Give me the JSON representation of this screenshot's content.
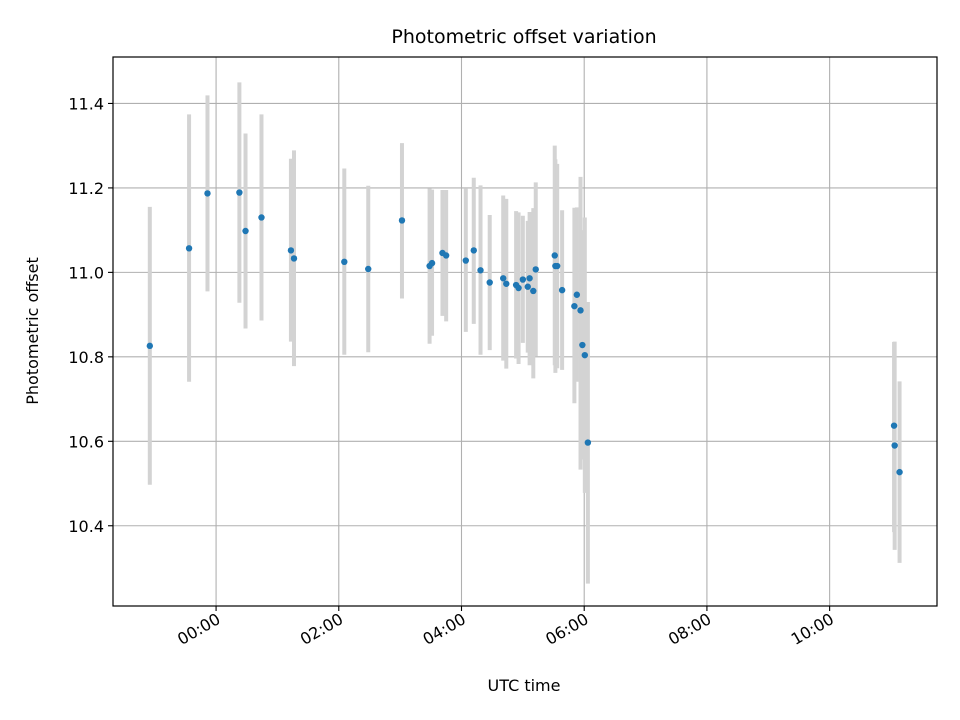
{
  "chart_data": {
    "type": "scatter",
    "title": "Photometric offset variation",
    "xlabel": "UTC time",
    "ylabel": "Photometric offset",
    "x_unit": "hours UTC",
    "xlim": [
      -1.68,
      11.75
    ],
    "ylim": [
      10.21,
      11.51
    ],
    "x_ticks": [
      {
        "value": 0,
        "label": "00:00"
      },
      {
        "value": 2,
        "label": "02:00"
      },
      {
        "value": 4,
        "label": "04:00"
      },
      {
        "value": 6,
        "label": "06:00"
      },
      {
        "value": 8,
        "label": "08:00"
      },
      {
        "value": 10,
        "label": "10:00"
      }
    ],
    "x_tick_label_rotation": 30,
    "y_ticks": [
      {
        "value": 10.4,
        "label": "10.4"
      },
      {
        "value": 10.6,
        "label": "10.6"
      },
      {
        "value": 10.8,
        "label": "10.8"
      },
      {
        "value": 11.0,
        "label": "11.0"
      },
      {
        "value": 11.2,
        "label": "11.2"
      },
      {
        "value": 11.4,
        "label": "11.4"
      }
    ],
    "grid": true,
    "colors": {
      "points": "#1f77b4",
      "error_bars": "#d3d3d3",
      "grid": "#b0b0b0"
    },
    "series": [
      {
        "points": [
          {
            "x": -1.08,
            "y": 10.826,
            "lo": 10.497,
            "hi": 11.155
          },
          {
            "x": -0.44,
            "y": 11.057,
            "lo": 10.741,
            "hi": 11.374
          },
          {
            "x": -0.14,
            "y": 11.187,
            "lo": 10.955,
            "hi": 11.419
          },
          {
            "x": 0.38,
            "y": 11.189,
            "lo": 10.928,
            "hi": 11.45
          },
          {
            "x": 0.48,
            "y": 11.098,
            "lo": 10.867,
            "hi": 11.329
          },
          {
            "x": 0.74,
            "y": 11.13,
            "lo": 10.886,
            "hi": 11.374
          },
          {
            "x": 1.22,
            "y": 11.052,
            "lo": 10.836,
            "hi": 11.269
          },
          {
            "x": 1.27,
            "y": 11.033,
            "lo": 10.778,
            "hi": 11.289
          },
          {
            "x": 2.09,
            "y": 11.025,
            "lo": 10.805,
            "hi": 11.246
          },
          {
            "x": 2.48,
            "y": 11.008,
            "lo": 10.811,
            "hi": 11.205
          },
          {
            "x": 3.03,
            "y": 11.123,
            "lo": 10.938,
            "hi": 11.306
          },
          {
            "x": 3.48,
            "y": 11.015,
            "lo": 10.831,
            "hi": 11.199
          },
          {
            "x": 3.52,
            "y": 11.022,
            "lo": 10.85,
            "hi": 11.196
          },
          {
            "x": 3.69,
            "y": 11.046,
            "lo": 10.897,
            "hi": 11.195
          },
          {
            "x": 3.75,
            "y": 11.04,
            "lo": 10.884,
            "hi": 11.195
          },
          {
            "x": 4.07,
            "y": 11.028,
            "lo": 10.859,
            "hi": 11.198
          },
          {
            "x": 4.2,
            "y": 11.052,
            "lo": 10.878,
            "hi": 11.224
          },
          {
            "x": 4.31,
            "y": 11.005,
            "lo": 10.805,
            "hi": 11.206
          },
          {
            "x": 4.46,
            "y": 10.976,
            "lo": 10.816,
            "hi": 11.136
          },
          {
            "x": 4.68,
            "y": 10.986,
            "lo": 10.791,
            "hi": 11.182
          },
          {
            "x": 4.73,
            "y": 10.973,
            "lo": 10.772,
            "hi": 11.174
          },
          {
            "x": 4.89,
            "y": 10.97,
            "lo": 10.796,
            "hi": 11.145
          },
          {
            "x": 4.93,
            "y": 10.963,
            "lo": 10.783,
            "hi": 11.142
          },
          {
            "x": 5.0,
            "y": 10.983,
            "lo": 10.833,
            "hi": 11.134
          },
          {
            "x": 5.08,
            "y": 10.966,
            "lo": 10.81,
            "hi": 11.122
          },
          {
            "x": 5.11,
            "y": 10.986,
            "lo": 10.78,
            "hi": 11.143
          },
          {
            "x": 5.17,
            "y": 10.956,
            "lo": 10.749,
            "hi": 11.152
          },
          {
            "x": 5.21,
            "y": 11.007,
            "lo": 10.801,
            "hi": 11.213
          },
          {
            "x": 5.52,
            "y": 11.04,
            "lo": 10.78,
            "hi": 11.3
          },
          {
            "x": 5.53,
            "y": 11.015,
            "lo": 10.762,
            "hi": 11.268
          },
          {
            "x": 5.56,
            "y": 11.015,
            "lo": 10.773,
            "hi": 11.257
          },
          {
            "x": 5.64,
            "y": 10.958,
            "lo": 10.769,
            "hi": 11.147
          },
          {
            "x": 5.84,
            "y": 10.92,
            "lo": 10.69,
            "hi": 11.153
          },
          {
            "x": 5.88,
            "y": 10.947,
            "lo": 10.741,
            "hi": 11.154
          },
          {
            "x": 5.94,
            "y": 10.91,
            "lo": 10.533,
            "hi": 11.226
          },
          {
            "x": 5.97,
            "y": 10.828,
            "lo": 10.557,
            "hi": 11.1
          },
          {
            "x": 6.01,
            "y": 10.804,
            "lo": 10.478,
            "hi": 11.13
          },
          {
            "x": 6.06,
            "y": 10.597,
            "lo": 10.263,
            "hi": 10.93
          },
          {
            "x": 11.05,
            "y": 10.637,
            "lo": 10.385,
            "hi": 10.835
          },
          {
            "x": 11.06,
            "y": 10.59,
            "lo": 10.343,
            "hi": 10.836
          },
          {
            "x": 11.14,
            "y": 10.527,
            "lo": 10.312,
            "hi": 10.742
          }
        ]
      }
    ]
  }
}
